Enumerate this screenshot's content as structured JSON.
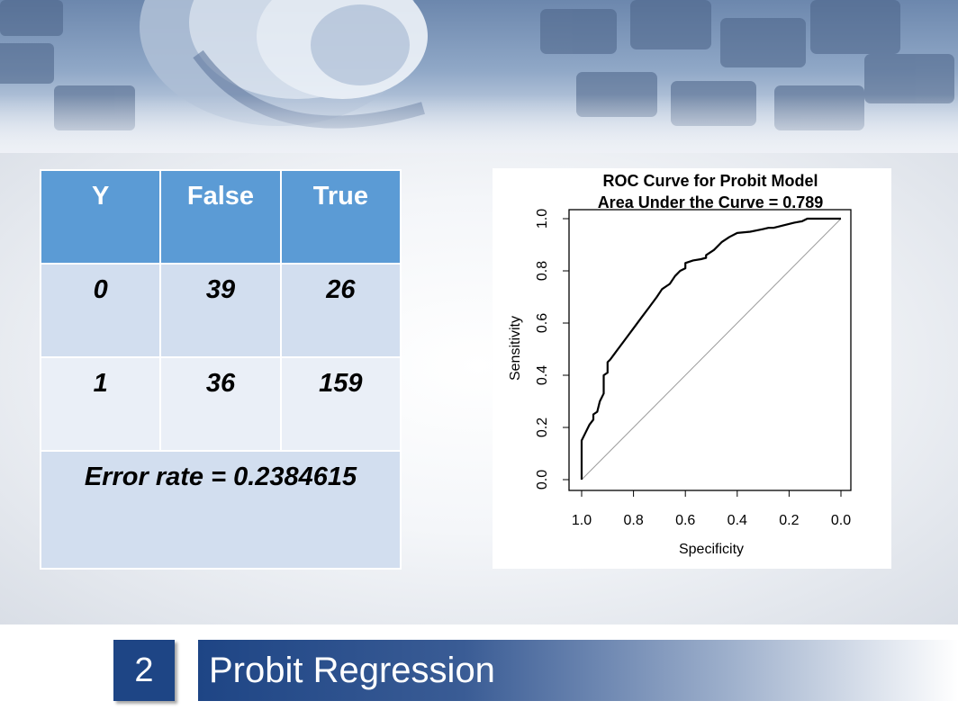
{
  "table": {
    "headers": [
      "Y",
      "False",
      "True"
    ],
    "rows": [
      [
        "0",
        "39",
        "26"
      ],
      [
        "1",
        "36",
        "159"
      ]
    ],
    "error_rate": "Error rate = 0.2384615"
  },
  "chart_data": {
    "type": "line",
    "title": "ROC Curve for Probit Model",
    "subtitle": "Area Under the Curve = 0.789",
    "xlabel": "Specificity",
    "ylabel": "Sensitivity",
    "xlim": [
      1.0,
      0.0
    ],
    "ylim": [
      0.0,
      1.0
    ],
    "x_reversed": true,
    "xticks": [
      "1.0",
      "0.8",
      "0.6",
      "0.4",
      "0.2",
      "0.0"
    ],
    "yticks": [
      "0.0",
      "0.2",
      "0.4",
      "0.6",
      "0.8",
      "1.0"
    ],
    "series": [
      {
        "specificity": [
          1.0,
          1.0,
          0.985,
          0.97,
          0.955,
          0.955,
          0.94,
          0.93,
          0.915,
          0.915,
          0.9,
          0.9,
          0.89,
          0.875,
          0.86,
          0.83,
          0.8,
          0.77,
          0.74,
          0.71,
          0.69,
          0.675,
          0.66,
          0.64,
          0.62,
          0.6,
          0.6,
          0.57,
          0.54,
          0.52,
          0.52,
          0.49,
          0.46,
          0.43,
          0.4,
          0.35,
          0.3,
          0.28,
          0.26,
          0.22,
          0.18,
          0.15,
          0.13,
          0.1,
          0.05,
          0.0
        ],
        "sensitivity": [
          0.0,
          0.15,
          0.18,
          0.21,
          0.23,
          0.25,
          0.26,
          0.3,
          0.33,
          0.4,
          0.41,
          0.45,
          0.46,
          0.48,
          0.5,
          0.54,
          0.58,
          0.62,
          0.66,
          0.7,
          0.73,
          0.74,
          0.75,
          0.78,
          0.8,
          0.81,
          0.83,
          0.84,
          0.845,
          0.85,
          0.86,
          0.88,
          0.91,
          0.93,
          0.945,
          0.95,
          0.96,
          0.965,
          0.965,
          0.975,
          0.985,
          0.99,
          1.0,
          1.0,
          1.0,
          1.0
        ]
      }
    ],
    "reference_line": "diagonal"
  },
  "footer": {
    "slide_number": "2",
    "title": "Probit Regression"
  },
  "colors": {
    "table_header": "#5b9bd5",
    "table_row_dark": "#d2deef",
    "table_row_light": "#eaeff7",
    "footer_blue": "#1e4585"
  }
}
